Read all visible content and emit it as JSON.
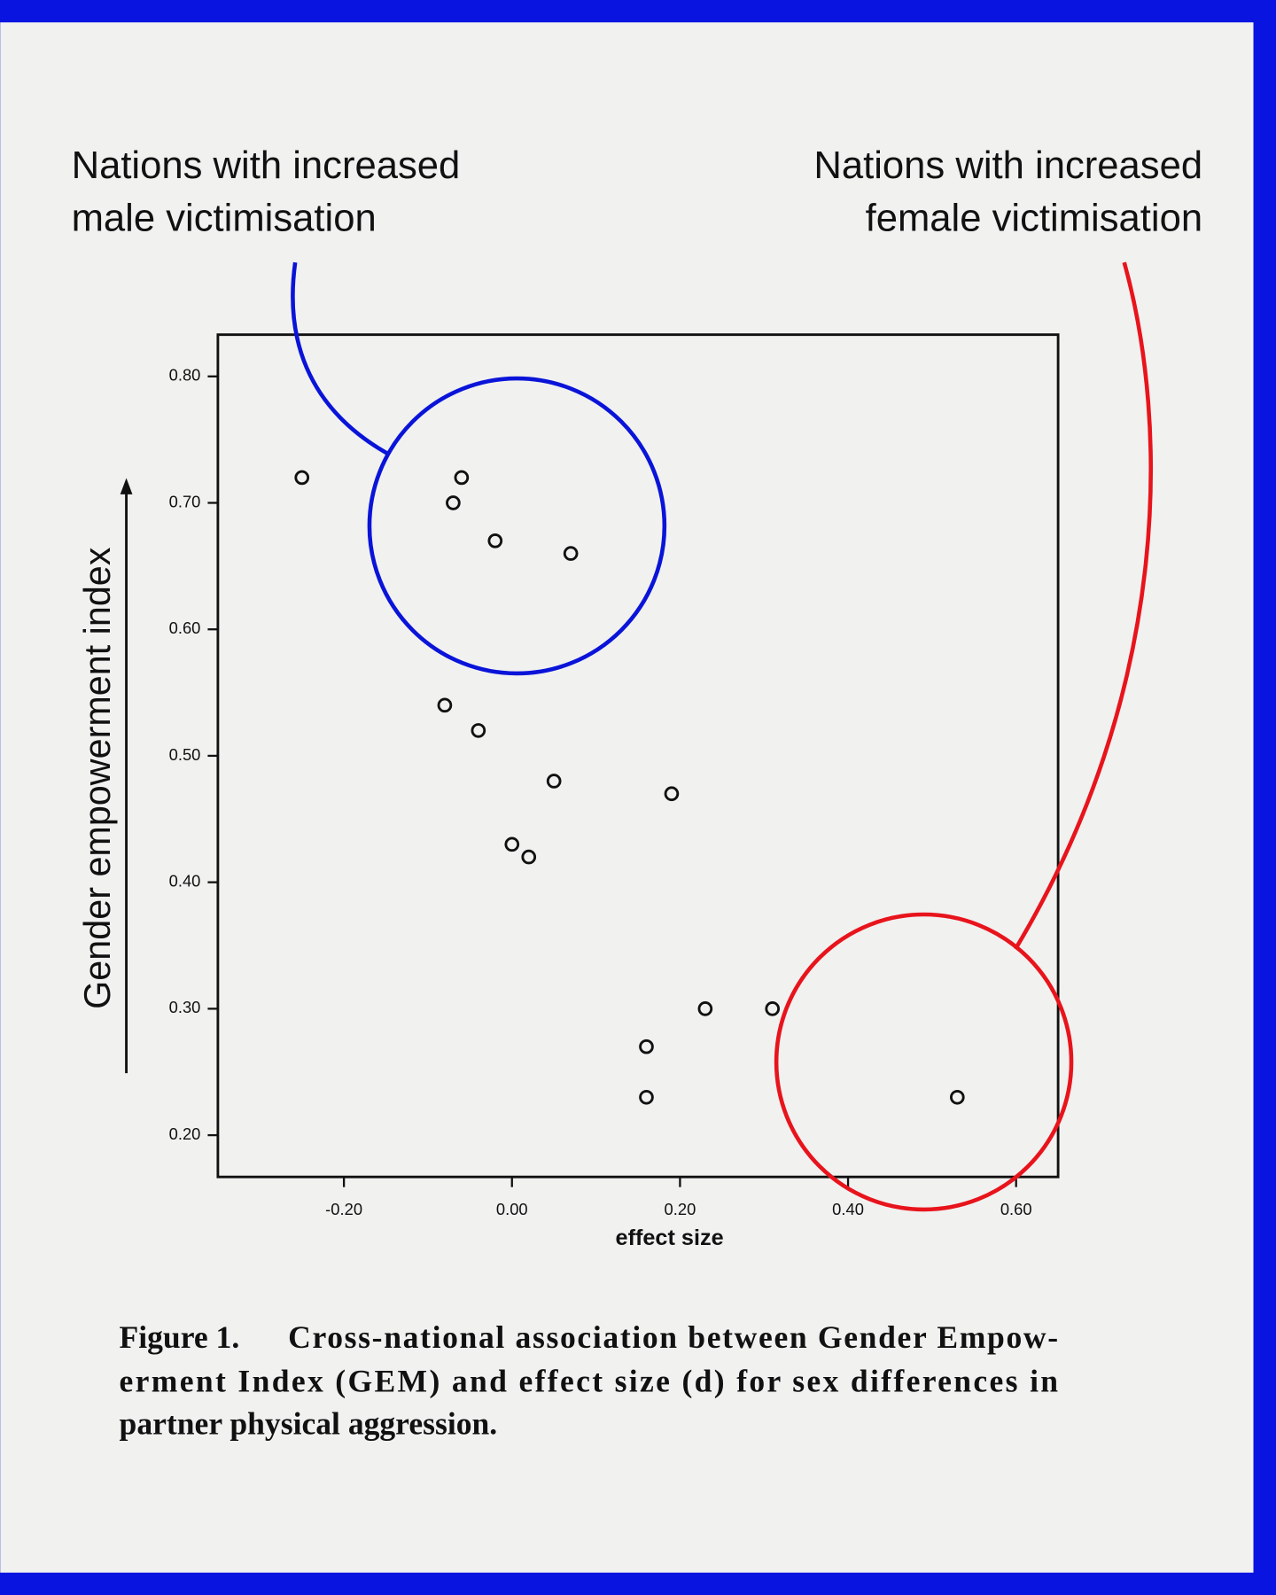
{
  "chart_data": {
    "type": "scatter",
    "x": [
      -0.25,
      -0.06,
      -0.07,
      -0.02,
      0.07,
      -0.08,
      -0.04,
      0.05,
      0.19,
      0.0,
      0.02,
      0.23,
      0.31,
      0.16,
      0.16,
      0.53
    ],
    "values": [
      0.72,
      0.72,
      0.7,
      0.67,
      0.66,
      0.54,
      0.52,
      0.48,
      0.47,
      0.43,
      0.42,
      0.3,
      0.3,
      0.27,
      0.23,
      0.23
    ],
    "color": "#111111",
    "xlabel": "effect size",
    "ylabel": "Gender empowerment index",
    "xlim": [
      -0.35,
      0.65
    ],
    "ylim": [
      0.167,
      0.833
    ],
    "xticks": [
      {
        "value": -0.2,
        "label": "-0.20"
      },
      {
        "value": 0,
        "label": "0.00"
      },
      {
        "value": 0.2,
        "label": "0.20"
      },
      {
        "value": 0.4,
        "label": "0.40"
      },
      {
        "value": 0.6,
        "label": "0.60"
      }
    ],
    "yticks": [
      {
        "value": 0.2,
        "label": "0.20"
      },
      {
        "value": 0.3,
        "label": "0.30"
      },
      {
        "value": 0.4,
        "label": "0.40"
      },
      {
        "value": 0.5,
        "label": "0.50"
      },
      {
        "value": 0.6,
        "label": "0.60"
      },
      {
        "value": 0.7,
        "label": "0.70"
      },
      {
        "value": 0.8,
        "label": "0.80"
      }
    ],
    "annotations": [
      {
        "lines": [
          "Nations with increased",
          "male victimisation"
        ],
        "color": "#0a14d8"
      },
      {
        "lines": [
          "Nations with increased",
          "female victimisation"
        ],
        "color": "#e8141c"
      }
    ],
    "caption": {
      "label": "Figure 1.",
      "lines": [
        "Cross-national association between Gender Empow-",
        "erment Index (GEM) and effect size (d) for sex differences in",
        "partner physical aggression."
      ]
    }
  }
}
